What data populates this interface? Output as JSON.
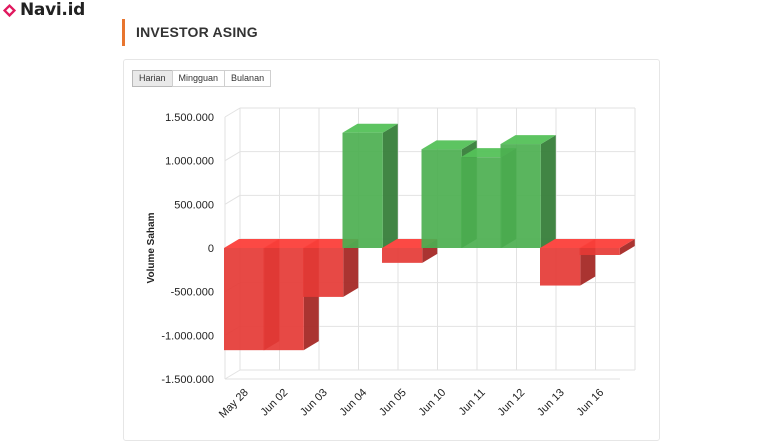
{
  "brand": {
    "name": "Navi.id",
    "icon": "diamond-logo-icon",
    "color": "#e0185e"
  },
  "section": {
    "title": "INVESTOR ASING",
    "accent": "#e8752f"
  },
  "tabs": [
    {
      "label": "Harian",
      "active": true
    },
    {
      "label": "Mingguan",
      "active": false
    },
    {
      "label": "Bulanan",
      "active": false
    }
  ],
  "chart_data": {
    "type": "bar",
    "ylabel": "Volume Saham",
    "ylim": [
      -1500000,
      1500000
    ],
    "yticks": [
      1500000,
      1000000,
      500000,
      0,
      -500000,
      -1000000,
      -1500000
    ],
    "ytick_labels": [
      "1.500.000",
      "1.000.000",
      "500.000",
      "0",
      "-500.000",
      "-1.000.000",
      "-1.500.000"
    ],
    "categories": [
      "May 28",
      "Jun 02",
      "Jun 03",
      "Jun 04",
      "Jun 05",
      "Jun 10",
      "Jun 11",
      "Jun 12",
      "Jun 13",
      "Jun 16"
    ],
    "values": [
      -1170000,
      -1170000,
      -560000,
      1320000,
      -170000,
      1130000,
      1040000,
      1190000,
      -430000,
      -80000
    ],
    "grid": true,
    "style": "3d",
    "colors": {
      "positive": "#4caf50",
      "negative": "#e53935"
    }
  }
}
